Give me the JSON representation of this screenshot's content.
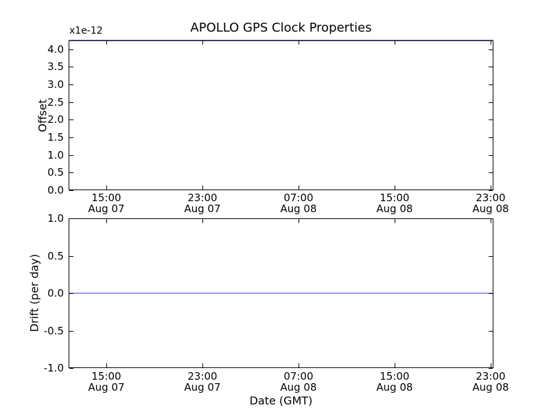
{
  "figure": {
    "title": "APOLLO GPS Clock Properties",
    "xlabel": "Date (GMT)",
    "colors": {
      "background": "#ffffff",
      "frame": "#000000",
      "text": "#000000",
      "drift_line": "#9b9bef",
      "offset_line_over_spine": "#3d3d6b"
    }
  },
  "x_axis": {
    "tick_hours": [
      15,
      23,
      31,
      39,
      47
    ],
    "tick_labels": [
      [
        "15:00",
        "Aug 07"
      ],
      [
        "23:00",
        "Aug 07"
      ],
      [
        "07:00",
        "Aug 08"
      ],
      [
        "15:00",
        "Aug 08"
      ],
      [
        "23:00",
        "Aug 08"
      ]
    ],
    "xlim_hours": [
      11.86,
      47.23
    ]
  },
  "offset_plot": {
    "ylabel": "Offset",
    "scale_label": "x1e-12",
    "ytick_values": [
      4.0,
      3.5,
      3.0,
      2.5,
      2.0,
      1.5,
      1.0,
      0.5,
      0.0
    ],
    "ytick_labels": [
      "4.0",
      "3.5",
      "3.0",
      "2.5",
      "2.0",
      "1.5",
      "1.0",
      "0.5",
      "0.0"
    ],
    "ylim": [
      0,
      4.27
    ]
  },
  "drift_plot": {
    "ylabel": "Drift (per day)",
    "ytick_values": [
      1.0,
      0.5,
      0.0,
      -0.5,
      -1.0
    ],
    "ytick_labels": [
      "1.0",
      "0.5",
      "0.0",
      "-0.5",
      "-1.0"
    ],
    "ylim": [
      -1.0,
      1.0
    ]
  },
  "chart_data": [
    {
      "type": "line",
      "title": "APOLLO GPS Clock Properties",
      "ylabel": "Offset",
      "y_scale": "x1e-12",
      "x_tick_labels": [
        "Aug 07 15:00",
        "Aug 07 23:00",
        "Aug 08 07:00",
        "Aug 08 15:00",
        "Aug 08 23:00"
      ],
      "xlim": [
        "Aug 07 ~11:50",
        "Aug 08 ~23:15"
      ],
      "ylim": [
        0,
        4.27
      ],
      "yticks": [
        0.0,
        0.5,
        1.0,
        1.5,
        2.0,
        2.5,
        3.0,
        3.5,
        4.0
      ],
      "grid": false,
      "legend": null,
      "series": [
        {
          "name": "offset",
          "values": [
            4.27,
            4.27
          ],
          "note": "flat line lying on the top axis boundary (blends with top spine, appears dark navy)"
        }
      ]
    },
    {
      "type": "line",
      "xlabel": "Date (GMT)",
      "ylabel": "Drift (per day)",
      "x_tick_labels": [
        "Aug 07 15:00",
        "Aug 07 23:00",
        "Aug 08 07:00",
        "Aug 08 15:00",
        "Aug 08 23:00"
      ],
      "xlim": [
        "Aug 07 ~11:50",
        "Aug 08 ~23:15"
      ],
      "ylim": [
        -1.0,
        1.0
      ],
      "yticks": [
        -1.0,
        -0.5,
        0.0,
        0.5,
        1.0
      ],
      "grid": false,
      "legend": null,
      "series": [
        {
          "name": "drift",
          "values": [
            0.0,
            0.0
          ],
          "note": "flat light-blue line at 0.0 spanning full x range"
        }
      ]
    }
  ]
}
